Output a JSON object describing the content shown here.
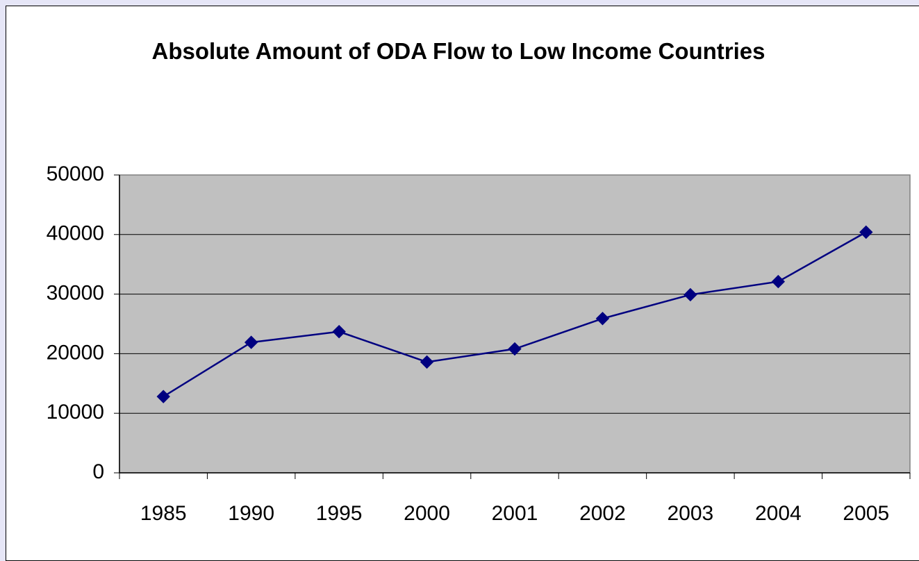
{
  "chart_data": {
    "type": "line",
    "title": "Absolute Amount of ODA Flow to Low Income Countries",
    "categories": [
      "1985",
      "1990",
      "1995",
      "2000",
      "2001",
      "2002",
      "2003",
      "2004",
      "2005"
    ],
    "values": [
      12800,
      21900,
      23700,
      18600,
      20800,
      25900,
      29900,
      32100,
      40400
    ],
    "color": "#000080",
    "ylim": [
      0,
      50000
    ],
    "yticks": [
      0,
      10000,
      20000,
      30000,
      40000,
      50000
    ],
    "grid": true
  }
}
